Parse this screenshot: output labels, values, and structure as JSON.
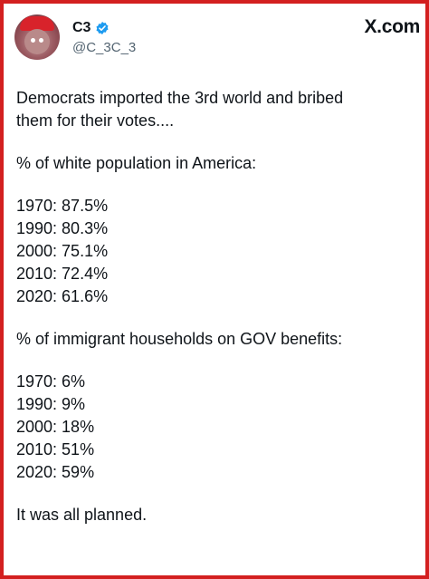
{
  "post": {
    "author": {
      "name": "C3",
      "handle": "@C_3C_3",
      "verified": true
    },
    "brand": "X.com",
    "text": {
      "intro": [
        "Democrats imported the 3rd world and bribed",
        "them for their votes...."
      ],
      "section1_title": "% of white population in America:",
      "section1_items": [
        "1970: 87.5%",
        "1990: 80.3%",
        "2000: 75.1%",
        "2010: 72.4%",
        "2020: 61.6%"
      ],
      "section2_title": "% of immigrant households on GOV benefits:",
      "section2_items": [
        "1970: 6%",
        "1990: 9%",
        "2000: 18%",
        "2010: 51%",
        "2020: 59%"
      ],
      "closing": "It was all planned."
    }
  },
  "colors": {
    "frame_border": "#d32020",
    "verified_badge": "#1d9bf0",
    "text": "#0f1419",
    "secondary_text": "#536471"
  }
}
